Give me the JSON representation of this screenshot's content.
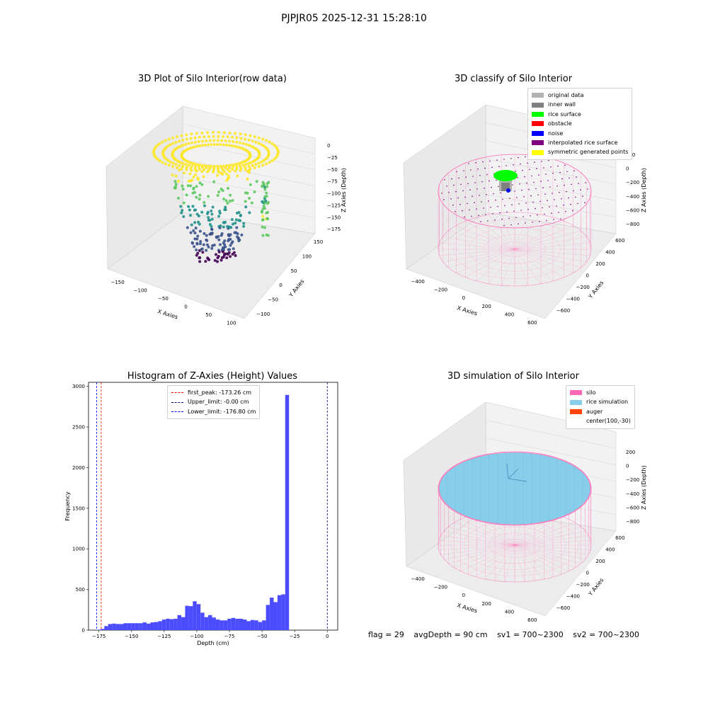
{
  "figure": {
    "suptitle": "PJPJR05 2025-12-31 15:28:10",
    "footer": {
      "flag": "flag = 29",
      "avg": "avgDepth = 90 cm",
      "sv1": "sv1 = 700~2300",
      "sv2": "sv2 = 700~2300"
    }
  },
  "colors": {
    "pane": "#f2f2f2",
    "grid": "#d9d9d9",
    "hist_bar": "#4c4cff",
    "silo": "#ff69b4",
    "rice_sim": "#87ceeb",
    "auger": "#ff4500"
  },
  "chart_data": [
    {
      "type": "scatter",
      "title": "3D Plot of Silo Interior(row data)",
      "xlabel": "X Axies",
      "ylabel": "Y Axies",
      "zlabel": "Z Axies (Depth)",
      "x_ticks": [
        "−150",
        "−100",
        "−50",
        "0",
        "50",
        "100"
      ],
      "y_ticks": [
        "−100",
        "−50",
        "0",
        "50",
        "100",
        "150"
      ],
      "z_ticks": [
        "0",
        "−25",
        "−50",
        "−75",
        "−100",
        "−125",
        "−150",
        "−175"
      ],
      "colormap": "viridis"
    },
    {
      "type": "scatter",
      "title": "3D classify of Silo Interior",
      "xlabel": "X Axies",
      "ylabel": "Y Axies",
      "zlabel": "Z Axies (Depth)",
      "x_ticks": [
        "−400",
        "−200",
        "0",
        "200",
        "400",
        "600"
      ],
      "y_ticks": [
        "−600",
        "−400",
        "−200",
        "0",
        "200",
        "400",
        "600"
      ],
      "z_ticks": [
        "200",
        "0",
        "−200",
        "−400",
        "−600",
        "−800"
      ],
      "legend": [
        {
          "label": "original data",
          "color": "#b3b3b3"
        },
        {
          "label": "inner wall",
          "color": "#808080"
        },
        {
          "label": "rice surface",
          "color": "#00ff00"
        },
        {
          "label": "obstacle",
          "color": "#ff0000"
        },
        {
          "label": "noise",
          "color": "#0000ff"
        },
        {
          "label": "interpolated rice surface",
          "color": "#800080"
        },
        {
          "label": "symmetric generated points",
          "color": "#ffff00"
        }
      ]
    },
    {
      "type": "bar",
      "title": "Histogram of Z-Axies (Height) Values",
      "xlabel": "Depth (cm)",
      "ylabel": "Frequency",
      "xlim": [
        -183,
        8
      ],
      "ylim": [
        0,
        3050
      ],
      "x_ticks": [
        -175,
        -150,
        -125,
        -100,
        -75,
        -50,
        -25,
        0
      ],
      "y_ticks": [
        0,
        500,
        1000,
        1500,
        2000,
        2500,
        3000
      ],
      "bin_start": -176.8,
      "bin_width": 2.95,
      "values": [
        5,
        15,
        50,
        75,
        80,
        75,
        75,
        85,
        85,
        85,
        85,
        85,
        95,
        80,
        95,
        100,
        110,
        130,
        140,
        135,
        140,
        185,
        160,
        300,
        295,
        355,
        320,
        215,
        160,
        185,
        155,
        130,
        120,
        120,
        140,
        150,
        140,
        140,
        130,
        110,
        125,
        120,
        100,
        120,
        310,
        400,
        345,
        430,
        440,
        2895
      ],
      "lines": [
        {
          "label": "first_peak: -173.26 cm",
          "x": -173.26,
          "color": "#ff0000"
        },
        {
          "label": "Upper_limit: -0.00 cm",
          "x": -0.0,
          "color": "#000080"
        },
        {
          "label": "Lower_limit: -176.80 cm",
          "x": -176.8,
          "color": "#0000ff"
        }
      ]
    },
    {
      "type": "scatter",
      "title": "3D simulation of Silo Interior",
      "xlabel": "X Axies",
      "ylabel": "Y Axies",
      "zlabel": "Z Axies (Depth)",
      "x_ticks": [
        "−400",
        "−200",
        "0",
        "200",
        "400",
        "600"
      ],
      "y_ticks": [
        "−600",
        "−400",
        "−200",
        "0",
        "200",
        "400",
        "600"
      ],
      "z_ticks": [
        "200",
        "0",
        "−200",
        "−400",
        "−600",
        "−800"
      ],
      "legend": [
        {
          "label": "silo",
          "color": "#ff69b4"
        },
        {
          "label": "rice simulation",
          "color": "#87ceeb"
        },
        {
          "label": "auger",
          "color": "#ff4500"
        },
        {
          "label": "center(100,-30)",
          "color": ""
        }
      ]
    }
  ]
}
